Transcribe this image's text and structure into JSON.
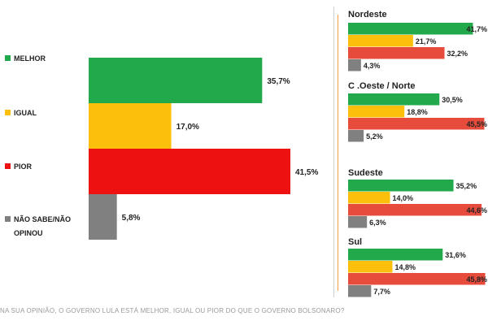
{
  "colors": {
    "melhor": "#22a94b",
    "igual": "#fcbf0c",
    "pior_main": "#ee1111",
    "pior_region": "#e74b3c",
    "nao_sabe": "#808080"
  },
  "chart_data": [
    {
      "type": "bar",
      "orientation": "horizontal",
      "categories": [
        "MELHOR",
        "IGUAL",
        "PIOR",
        "NÃO SABE/NÃO OPINOU"
      ],
      "category_lines": [
        [
          "MELHOR"
        ],
        [
          "IGUAL"
        ],
        [
          "PIOR"
        ],
        [
          "NÃO SABE/NÃO",
          "OPINOU"
        ]
      ],
      "values": [
        35.7,
        17.0,
        41.5,
        5.8
      ],
      "value_labels": [
        "35,7%",
        "17,0%",
        "41,5%",
        "5,8%"
      ],
      "xlim": [
        0,
        45
      ],
      "legend": "left",
      "grid": false
    },
    {
      "type": "bar",
      "orientation": "horizontal",
      "title": "Nordeste",
      "categories": [
        "MELHOR",
        "IGUAL",
        "PIOR",
        "NÃO SABE/NÃO OPINOU"
      ],
      "values": [
        41.7,
        21.7,
        32.2,
        4.3
      ],
      "value_labels": [
        "41,7%",
        "21,7%",
        "32,2%",
        "4,3%"
      ],
      "xlim": [
        0,
        45
      ]
    },
    {
      "type": "bar",
      "orientation": "horizontal",
      "title": "C .Oeste / Norte",
      "categories": [
        "MELHOR",
        "IGUAL",
        "PIOR",
        "NÃO SABE/NÃO OPINOU"
      ],
      "values": [
        30.5,
        18.8,
        45.5,
        5.2
      ],
      "value_labels": [
        "30,5%",
        "18,8%",
        "45,5%",
        "5,2%"
      ],
      "xlim": [
        0,
        45
      ]
    },
    {
      "type": "bar",
      "orientation": "horizontal",
      "title": "Sudeste",
      "categories": [
        "MELHOR",
        "IGUAL",
        "PIOR",
        "NÃO SABE/NÃO OPINOU"
      ],
      "values": [
        35.2,
        14.0,
        44.6,
        6.3
      ],
      "value_labels": [
        "35,2%",
        "14,0%",
        "44,6%",
        "6,3%"
      ],
      "xlim": [
        0,
        45
      ]
    },
    {
      "type": "bar",
      "orientation": "horizontal",
      "title": "Sul",
      "categories": [
        "MELHOR",
        "IGUAL",
        "PIOR",
        "NÃO SABE/NÃO OPINOU"
      ],
      "values": [
        31.6,
        14.8,
        45.8,
        7.7
      ],
      "value_labels": [
        "31,6%",
        "14,8%",
        "45,8%",
        "7,7%"
      ],
      "xlim": [
        0,
        45
      ]
    }
  ],
  "footer": {
    "question": "NA SUA OPINIÃO, O GOVERNO LULA ESTÁ MELHOR, IGUAL OU PIOR DO QUE O GOVERNO BOLSONARO?"
  }
}
